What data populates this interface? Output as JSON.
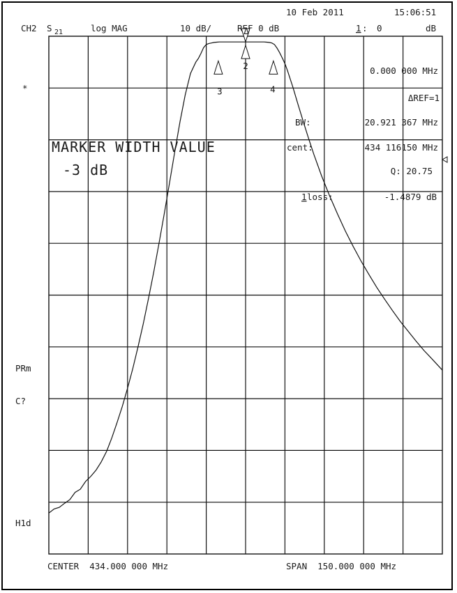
{
  "header": {
    "date": "10 Feb 2011",
    "time": "15:06:51",
    "channel": "CH2",
    "param": "S",
    "param_sub": "21",
    "format": "log MAG",
    "scale": "10 dB/",
    "ref": "REF 0 dB",
    "marker_no": "1",
    "marker_colon": ":",
    "marker_value": "0",
    "marker_unit": "dB"
  },
  "readouts": {
    "marker_freq": "0.000 000 MHz",
    "delta_ref": "ΔREF=1",
    "bw_label": "BW:",
    "bw_value": "20.921 367 MHz",
    "cent_label": "cent:",
    "cent_value": "434 116150 MHz",
    "q_value": "Q: 20.75",
    "loss_no": "1",
    "loss_label": " loss:",
    "loss_value": "-1.4879 dB"
  },
  "annotation": {
    "title": "MARKER WIDTH VALUE",
    "value": "-3 dB"
  },
  "left_labels": {
    "star": "*",
    "prm": "PRm",
    "c_q": "C?",
    "hld": "H1d"
  },
  "footer": {
    "center": "CENTER  434.000 000 MHz",
    "span": "SPAN  150.000 000 MHz"
  },
  "markers": {
    "m1": "Δ",
    "m2": "2",
    "m3": "3",
    "m4": "4"
  },
  "chart_data": {
    "type": "line",
    "title": "",
    "xlabel": "",
    "ylabel": "",
    "x_unit": "MHz",
    "y_unit": "dB",
    "xlim": [
      359,
      509
    ],
    "ylim": [
      -100,
      0
    ],
    "grid": true,
    "series": [
      {
        "x": [
          359,
          361,
          363,
          365,
          367,
          369,
          371,
          373,
          375,
          377,
          379,
          381,
          383,
          385,
          387,
          389,
          391,
          393,
          395,
          397,
          399,
          401,
          403,
          405,
          407,
          409,
          411,
          413,
          415,
          416,
          417,
          418,
          419,
          420,
          421,
          422,
          423,
          424,
          425,
          426,
          427,
          428,
          429,
          430,
          431,
          432,
          433,
          434,
          435,
          436,
          437,
          438,
          439,
          440,
          441,
          442,
          443,
          444,
          445,
          446,
          447,
          448,
          449,
          450,
          452,
          454,
          456,
          458,
          460,
          463,
          466,
          469,
          472,
          475,
          478,
          481,
          484,
          487,
          490,
          493,
          496,
          499,
          502,
          505,
          509
        ],
        "y": [
          -92.1,
          -91.3,
          -91.0,
          -90.2,
          -89.5,
          -88.1,
          -87.5,
          -86.0,
          -85.0,
          -83.8,
          -82.2,
          -80.2,
          -77.6,
          -74.6,
          -71.5,
          -68.0,
          -64.2,
          -60.0,
          -55.5,
          -50.6,
          -45.5,
          -40.0,
          -34.3,
          -28.3,
          -22.3,
          -16.5,
          -11.3,
          -7.2,
          -5.0,
          -4.3,
          -3.3,
          -2.2,
          -1.6,
          -1.4,
          -1.3,
          -1.2,
          -1.15,
          -1.1,
          -1.1,
          -1.1,
          -1.1,
          -1.1,
          -1.1,
          -1.1,
          -1.1,
          -1.1,
          -1.1,
          -1.1,
          -1.1,
          -1.1,
          -1.1,
          -1.1,
          -1.1,
          -1.1,
          -1.1,
          -1.15,
          -1.2,
          -1.3,
          -1.6,
          -2.3,
          -3.2,
          -4.2,
          -5.3,
          -6.7,
          -9.8,
          -13.2,
          -16.5,
          -19.7,
          -22.8,
          -27.0,
          -30.8,
          -34.3,
          -37.6,
          -40.6,
          -43.4,
          -46.0,
          -48.5,
          -50.8,
          -53.0,
          -55.1,
          -57.0,
          -58.9,
          -60.7,
          -62.3,
          -64.5
        ]
      }
    ],
    "marker_points": [
      {
        "id": "1",
        "x": 434.0,
        "y": -1.49
      },
      {
        "id": "2",
        "x": 434.0,
        "y": -1.49
      },
      {
        "id": "3",
        "x": 423.6,
        "y": -4.49
      },
      {
        "id": "4",
        "x": 444.6,
        "y": -4.49
      }
    ]
  }
}
